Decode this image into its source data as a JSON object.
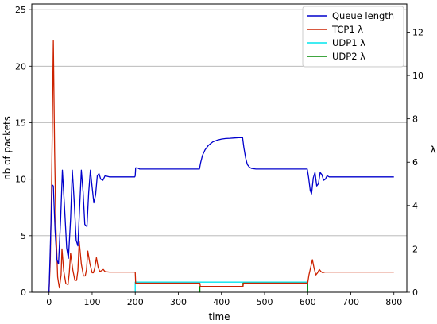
{
  "chart_data": {
    "type": "line",
    "xlabel": "time",
    "ylabel_left": "nb of packets",
    "ylabel_right": "λ",
    "xlim": [
      -40,
      830
    ],
    "ylim_left": [
      0,
      25.5
    ],
    "ylim_right": [
      0,
      13.3
    ],
    "xticks": [
      "0",
      "100",
      "200",
      "300",
      "400",
      "500",
      "600",
      "700",
      "800"
    ],
    "yticks_left": [
      "0",
      "5",
      "10",
      "15",
      "20",
      "25"
    ],
    "yticks_right": [
      "0",
      "2",
      "4",
      "6",
      "8",
      "10",
      "12"
    ],
    "grid": "horizontal-left-axis",
    "legend_position": "top-right",
    "series": [
      {
        "name": "Queue length",
        "axis": "left",
        "color": "#0000cc",
        "x": [
          0,
          3,
          7,
          10,
          14,
          18,
          22,
          27,
          31,
          36,
          41,
          45,
          50,
          54,
          58,
          63,
          67,
          71,
          75,
          79,
          83,
          88,
          92,
          96,
          100,
          104,
          108,
          112,
          116,
          120,
          125,
          130,
          140,
          150,
          160,
          170,
          180,
          190,
          199,
          200,
          201,
          205,
          210,
          220,
          240,
          260,
          280,
          300,
          320,
          340,
          349,
          352,
          356,
          362,
          370,
          380,
          390,
          400,
          410,
          420,
          430,
          440,
          449,
          452,
          456,
          460,
          465,
          470,
          480,
          490,
          500,
          520,
          540,
          560,
          580,
          599,
          602,
          606,
          609,
          613,
          617,
          621,
          625,
          629,
          633,
          637,
          641,
          645,
          650,
          660,
          680,
          700,
          720,
          740,
          760,
          780,
          800
        ],
        "y": [
          0,
          4,
          9.5,
          9.4,
          5.5,
          2.9,
          2.5,
          6.5,
          10.8,
          7.5,
          3.9,
          3.0,
          6.5,
          10.8,
          8.3,
          4.6,
          4.1,
          7.5,
          10.8,
          8.9,
          6.0,
          5.8,
          8.8,
          10.8,
          9.3,
          7.9,
          8.6,
          10.3,
          10.5,
          10.0,
          9.9,
          10.3,
          10.2,
          10.2,
          10.2,
          10.2,
          10.2,
          10.2,
          10.2,
          10.3,
          11.0,
          11.0,
          10.9,
          10.9,
          10.9,
          10.9,
          10.9,
          10.9,
          10.9,
          10.9,
          10.9,
          11.5,
          12.1,
          12.6,
          13.0,
          13.3,
          13.45,
          13.55,
          13.6,
          13.62,
          13.65,
          13.67,
          13.68,
          12.8,
          11.9,
          11.3,
          11.05,
          10.95,
          10.9,
          10.9,
          10.9,
          10.9,
          10.9,
          10.9,
          10.9,
          10.9,
          10.2,
          9.0,
          8.7,
          10.1,
          10.6,
          9.4,
          9.6,
          10.6,
          10.4,
          9.9,
          10.0,
          10.3,
          10.2,
          10.2,
          10.2,
          10.2,
          10.2,
          10.2,
          10.2,
          10.2,
          10.2
        ]
      },
      {
        "name": "TCP1 λ",
        "axis": "right",
        "color": "#cc2200",
        "x": [
          0,
          3,
          6,
          10,
          13,
          16,
          20,
          24,
          28,
          30,
          34,
          39,
          44,
          47,
          50,
          55,
          60,
          64,
          67,
          70,
          75,
          80,
          84,
          87,
          90,
          95,
          100,
          103,
          106,
          110,
          114,
          118,
          122,
          126,
          130,
          140,
          160,
          180,
          199,
          200,
          201,
          210,
          250,
          300,
          349,
          350,
          351,
          360,
          400,
          449,
          450,
          451,
          460,
          500,
          550,
          599,
          600,
          603,
          607,
          611,
          615,
          619,
          623,
          627,
          631,
          635,
          640,
          650,
          680,
          720,
          760,
          800
        ],
        "y": [
          0,
          1.5,
          5.0,
          11.6,
          6.5,
          3.0,
          0.7,
          0.2,
          0.8,
          2.0,
          1.0,
          0.4,
          0.35,
          0.9,
          1.8,
          1.05,
          0.55,
          0.55,
          1.0,
          2.35,
          1.3,
          0.75,
          0.75,
          1.05,
          1.9,
          1.3,
          0.9,
          0.9,
          1.1,
          1.6,
          1.15,
          0.95,
          1.0,
          1.05,
          0.95,
          0.93,
          0.93,
          0.93,
          0.93,
          0.93,
          0.42,
          0.42,
          0.42,
          0.42,
          0.42,
          0.42,
          0.27,
          0.27,
          0.27,
          0.27,
          0.27,
          0.42,
          0.42,
          0.42,
          0.42,
          0.42,
          0.42,
          0.8,
          1.15,
          1.5,
          1.1,
          0.8,
          0.9,
          1.05,
          0.95,
          0.9,
          0.93,
          0.93,
          0.93,
          0.93,
          0.93,
          0.93
        ]
      },
      {
        "name": "UDP1 λ",
        "axis": "right",
        "color": "#00e5ee",
        "x": [
          199,
          200,
          200,
          598,
          600,
          600
        ],
        "y": [
          0,
          0,
          0.47,
          0.47,
          0.47,
          0
        ]
      },
      {
        "name": "UDP2 λ",
        "axis": "right",
        "color": "#008800",
        "x": [
          349,
          350,
          350,
          360,
          400,
          449,
          450,
          450,
          460,
          500,
          550,
          599,
          600,
          600
        ],
        "y": [
          0,
          0,
          0.27,
          0.27,
          0.27,
          0.27,
          0.27,
          0.42,
          0.42,
          0.42,
          0.42,
          0.42,
          0.42,
          0
        ]
      }
    ]
  }
}
